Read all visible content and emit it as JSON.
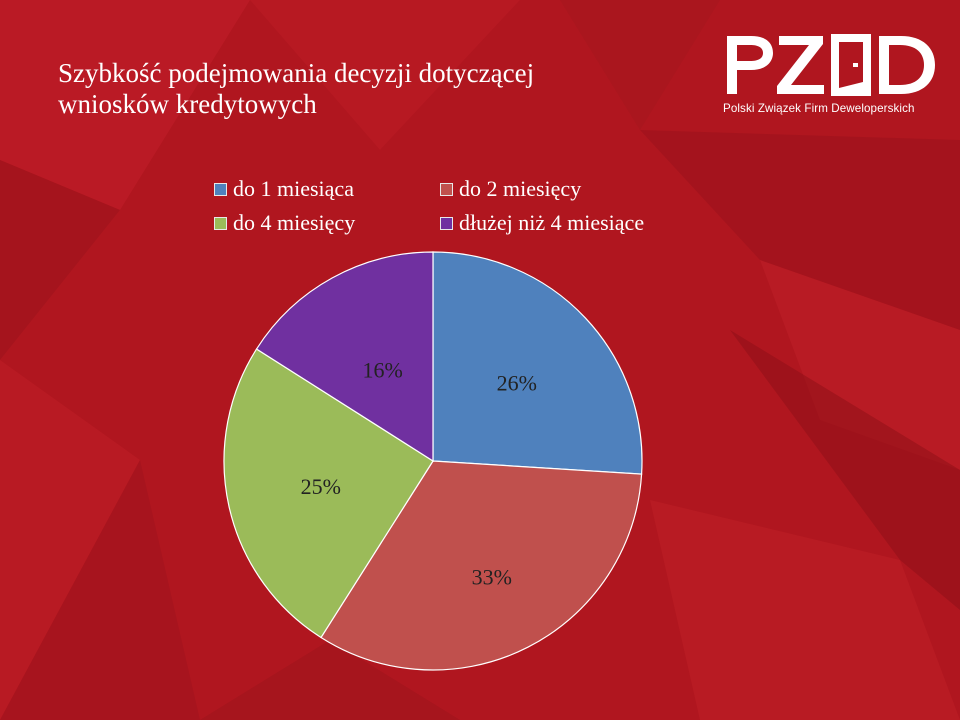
{
  "slide": {
    "title_line1": "Szybkość podejmowania decyzji dotyczącej",
    "title_line2": "wniosków kredytowych"
  },
  "logo": {
    "wordmark": "PZFD",
    "tagline": "Polski Związek Firm Deweloperskich"
  },
  "colors": {
    "background": "#b0161f",
    "text": "#ffffff"
  },
  "chart_data": {
    "type": "pie",
    "title": "",
    "legend_position": "top",
    "categories": [
      "do 1 miesiąca",
      "do 2 miesięcy",
      "do 4 miesięcy",
      "dłużej niż 4 miesiące"
    ],
    "values": [
      26,
      33,
      25,
      16
    ],
    "labels": [
      "26%",
      "33%",
      "25%",
      "16%"
    ],
    "colors": [
      "#4f81bd",
      "#c0504d",
      "#9bbb59",
      "#7030a0"
    ]
  }
}
